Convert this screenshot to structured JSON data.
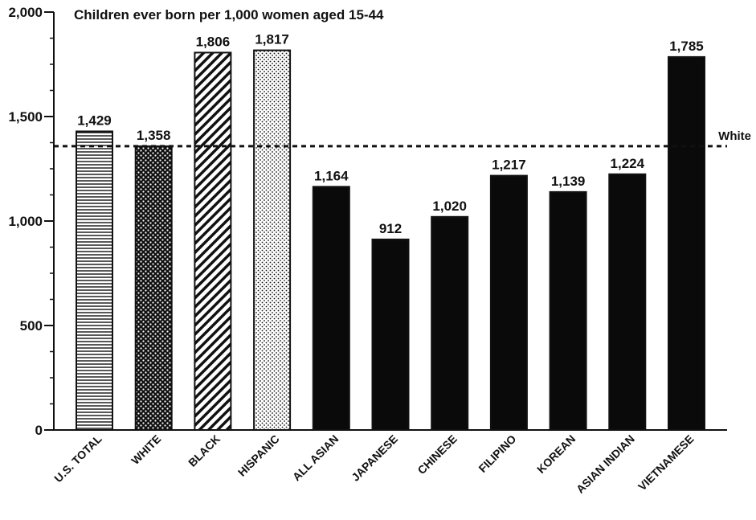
{
  "chart_data": {
    "type": "bar",
    "title": "Children ever born per 1,000 women aged 15-44",
    "xlabel": "",
    "ylabel": "",
    "ylim": [
      0,
      2000
    ],
    "yticks": [
      0,
      500,
      1000,
      1500,
      2000
    ],
    "ytick_labels": [
      "0",
      "500",
      "1,000",
      "1,500",
      "2,000"
    ],
    "categories": [
      "U.S. TOTAL",
      "WHITE",
      "BLACK",
      "HISPANIC",
      "ALL ASIAN",
      "JAPANESE",
      "CHINESE",
      "FILIPINO",
      "KOREAN",
      "ASIAN INDIAN",
      "VIETNAMESE"
    ],
    "values": [
      1429,
      1358,
      1806,
      1817,
      1164,
      912,
      1020,
      1217,
      1139,
      1224,
      1785
    ],
    "value_labels": [
      "1,429",
      "1,358",
      "1,806",
      "1,817",
      "1,164",
      "912",
      "1,020",
      "1,217",
      "1,139",
      "1,224",
      "1,785"
    ],
    "patterns": [
      "horizontal-lines",
      "crosshatch",
      "diagonal-lines",
      "dots",
      "solid",
      "solid",
      "solid",
      "solid",
      "solid",
      "solid",
      "solid"
    ],
    "reference_line": {
      "value": 1358,
      "label": "White",
      "style": "dashed"
    },
    "grid": false,
    "legend": "none",
    "colors": {
      "bar": "#0a0a0a",
      "axis": "#111111",
      "background": "#ffffff"
    }
  }
}
